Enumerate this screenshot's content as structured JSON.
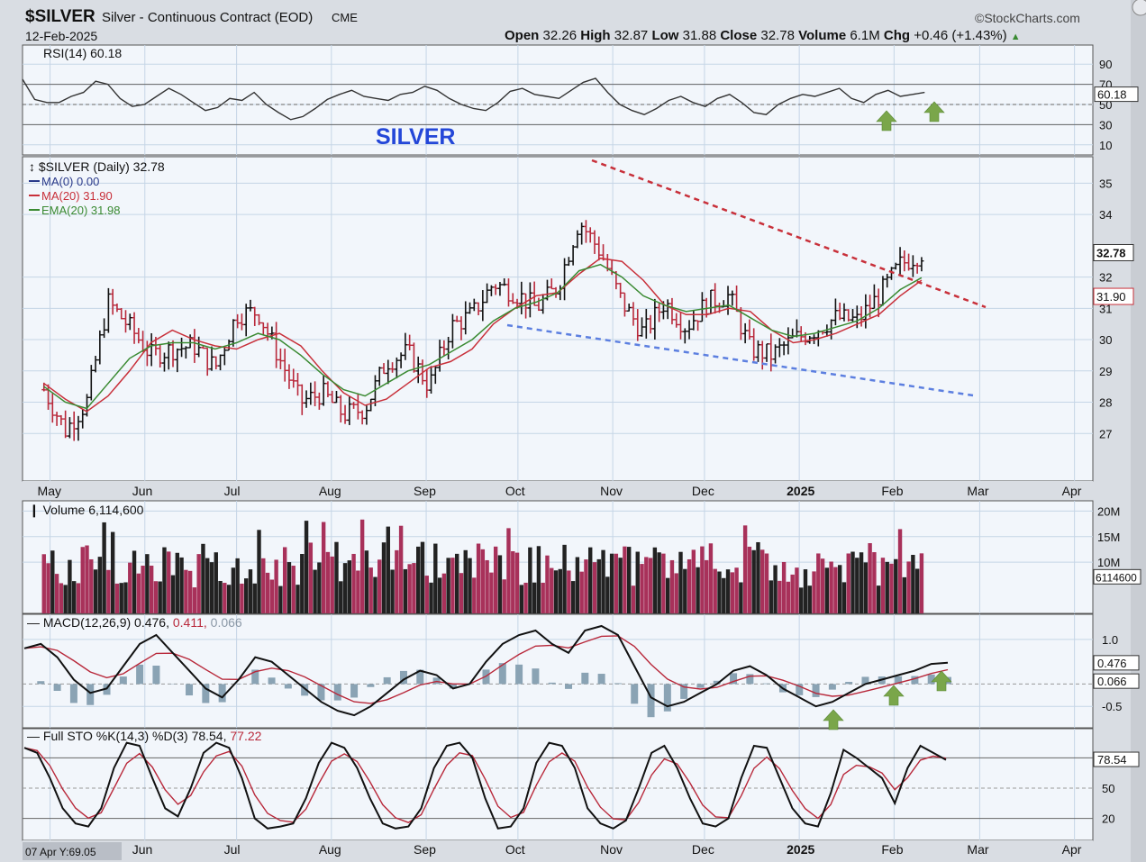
{
  "header": {
    "symbol": "$SILVER",
    "name": "Silver - Continuous Contract (EOD)",
    "exchange": "CME",
    "date": "12-Feb-2025",
    "brand": "©StockCharts.com",
    "open_label": "Open",
    "open": "32.26",
    "high_label": "High",
    "high": "32.87",
    "low_label": "Low",
    "low": "31.88",
    "close_label": "Close",
    "close": "32.78",
    "volume_label": "Volume",
    "volume": "6.1M",
    "chg_label": "Chg",
    "chg": "+0.46 (+1.43%)"
  },
  "annotation": "SILVER",
  "footer_readout": "07 Apr Y:69.05",
  "months": [
    "May",
    "Jun",
    "Jul",
    "Aug",
    "Sep",
    "Oct",
    "Nov",
    "Dec",
    "2025",
    "Feb",
    "Mar",
    "Apr"
  ],
  "panels": {
    "rsi": {
      "label": "RSI(14) 60.18",
      "ticks": [
        "90",
        "70",
        "50",
        "30",
        "10"
      ],
      "last_tag": "60.18",
      "bands": [
        70,
        50,
        30
      ]
    },
    "price": {
      "label_main": "$SILVER (Daily) 32.78",
      "label_ma0": "MA(0) 0.00",
      "label_ma20": "MA(20) 31.90",
      "label_ema20": "EMA(20) 31.98",
      "ticks": [
        "35",
        "34",
        "32",
        "31",
        "30",
        "29",
        "28",
        "27"
      ],
      "tag_close": "32.78",
      "tag_ma": "31.90"
    },
    "volume": {
      "label": "Volume 6,114,600",
      "ticks": [
        "20M",
        "15M",
        "10M"
      ],
      "last_tag": "6114600"
    },
    "macd": {
      "label": "MACD(12,26,9)",
      "v1": "0.476",
      "v2": "0.411",
      "v3": "0.066",
      "ticks": [
        "1.0",
        "-0.5"
      ],
      "tag1": "0.476",
      "tag2": "0.066"
    },
    "sto": {
      "label": "Full STO %K(14,3) %D(3)",
      "v1": "78.54",
      "v2": "77.22",
      "ticks": [
        "50",
        "20"
      ],
      "tag": "78.54"
    }
  },
  "colors": {
    "up": "#111111",
    "down": "#b8283a",
    "ma20": "#c8303a",
    "ema20": "#3a8a32",
    "resistance": "#c8303a",
    "support": "#5c7fe0",
    "vol_up": "#222222",
    "vol_down": "#a8315a",
    "macd_hist": "#8aa3b4",
    "arrow": "#7aa64a"
  },
  "chart_data": {
    "type": "line",
    "title": "$SILVER (Daily)",
    "x": [
      "2024-04-29",
      "2024-05-06",
      "2024-05-13",
      "2024-05-20",
      "2024-05-27",
      "2024-06-03",
      "2024-06-10",
      "2024-06-17",
      "2024-06-24",
      "2024-07-01",
      "2024-07-08",
      "2024-07-15",
      "2024-07-22",
      "2024-07-29",
      "2024-08-05",
      "2024-08-12",
      "2024-08-19",
      "2024-08-26",
      "2024-09-02",
      "2024-09-09",
      "2024-09-16",
      "2024-09-23",
      "2024-09-30",
      "2024-10-07",
      "2024-10-14",
      "2024-10-21",
      "2024-10-28",
      "2024-11-04",
      "2024-11-11",
      "2024-11-18",
      "2024-11-25",
      "2024-12-02",
      "2024-12-09",
      "2024-12-16",
      "2024-12-23",
      "2024-12-30",
      "2025-01-06",
      "2025-01-13",
      "2025-01-20",
      "2025-01-27",
      "2025-02-03",
      "2025-02-10"
    ],
    "series": [
      {
        "name": "$SILVER",
        "values": [
          28.4,
          27.1,
          28.0,
          31.2,
          30.4,
          29.5,
          29.7,
          29.8,
          29.1,
          30.8,
          30.9,
          29.4,
          28.0,
          28.3,
          27.6,
          27.8,
          29.3,
          29.6,
          28.5,
          30.4,
          30.8,
          31.8,
          31.5,
          31.0,
          31.7,
          33.8,
          32.8,
          31.2,
          30.2,
          31.2,
          30.4,
          31.2,
          31.4,
          29.7,
          29.5,
          30.0,
          30.3,
          30.7,
          30.6,
          31.4,
          32.4,
          32.78
        ]
      },
      {
        "name": "MA(20)",
        "values": [
          28.6,
          28.1,
          27.7,
          28.2,
          29.0,
          29.9,
          30.3,
          30.0,
          29.8,
          29.7,
          30.0,
          30.2,
          29.8,
          29.0,
          28.3,
          27.9,
          28.1,
          28.6,
          29.1,
          29.3,
          29.7,
          30.5,
          31.0,
          31.4,
          31.5,
          32.1,
          32.6,
          32.5,
          31.9,
          31.1,
          30.8,
          30.8,
          31.0,
          30.9,
          30.3,
          29.9,
          30.0,
          30.2,
          30.5,
          30.8,
          31.4,
          31.9
        ]
      },
      {
        "name": "EMA(20)",
        "values": [
          28.5,
          28.0,
          27.8,
          28.6,
          29.4,
          29.8,
          29.9,
          29.9,
          29.7,
          29.9,
          30.2,
          30.0,
          29.5,
          28.9,
          28.4,
          28.2,
          28.6,
          29.0,
          29.2,
          29.6,
          30.0,
          30.6,
          31.0,
          31.2,
          31.5,
          32.2,
          32.4,
          32.0,
          31.4,
          31.1,
          30.9,
          31.0,
          31.1,
          30.7,
          30.3,
          30.1,
          30.2,
          30.4,
          30.6,
          31.0,
          31.6,
          31.98
        ]
      }
    ],
    "ylim": [
      26,
      35.5
    ],
    "yticks": [
      27,
      28,
      29,
      30,
      31,
      32,
      34,
      35
    ]
  }
}
